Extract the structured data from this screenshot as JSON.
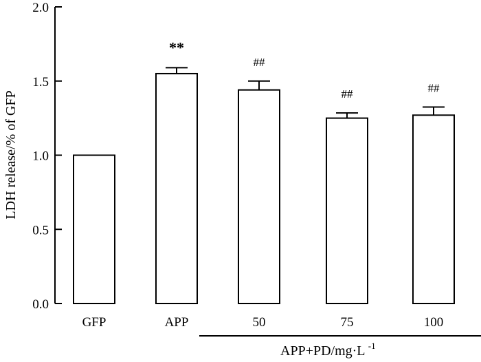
{
  "chart_data": {
    "type": "bar",
    "categories": [
      "GFP",
      "APP",
      "50",
      "75",
      "100"
    ],
    "values": [
      1.0,
      1.55,
      1.44,
      1.25,
      1.27
    ],
    "errors": [
      0.0,
      0.04,
      0.06,
      0.035,
      0.055
    ],
    "annotations": [
      "",
      "**",
      "##",
      "##",
      "##"
    ],
    "ylabel": "LDH release/% of GFP",
    "ylim": [
      0.0,
      2.0
    ],
    "yticks": [
      "0.0",
      "0.5",
      "1.0",
      "1.5",
      "2.0"
    ],
    "group_label": "APP+PD/mg·L",
    "group_label_sup": "-1",
    "group_members": [
      "50",
      "75",
      "100"
    ]
  }
}
